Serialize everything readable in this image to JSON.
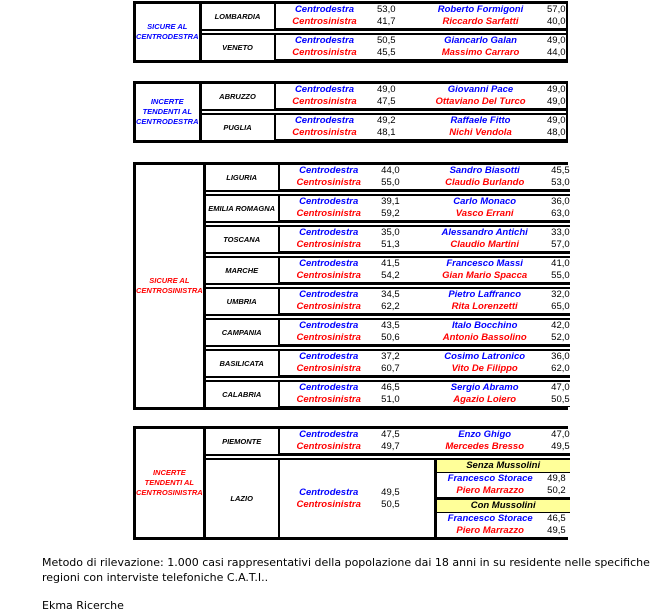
{
  "colors": {
    "centrodestra": "#0000ff",
    "centrosinistra": "#ff0000",
    "scenario_header": "#ffff99"
  },
  "blocks": [
    {
      "category": "SICURE AL CENTRODESTRA",
      "category_color": "#0000ff",
      "regions": [
        {
          "name": "LOMBARDIA",
          "rows": [
            {
              "coalition": "Centrodestra",
              "pct": "53,0",
              "candidate": "Roberto Formigoni",
              "cand_pct": "57,0"
            },
            {
              "coalition": "Centrosinistra",
              "pct": "41,7",
              "candidate": "Riccardo Sarfatti",
              "cand_pct": "40,0"
            }
          ]
        },
        {
          "name": "VENETO",
          "rows": [
            {
              "coalition": "Centrodestra",
              "pct": "50,5",
              "candidate": "Giancarlo Galan",
              "cand_pct": "49,0"
            },
            {
              "coalition": "Centrosinistra",
              "pct": "45,5",
              "candidate": "Massimo Carraro",
              "cand_pct": "44,0"
            }
          ]
        }
      ]
    },
    {
      "category": "INCERTE TENDENTI AL CENTRODESTRA",
      "category_color": "#0000ff",
      "regions": [
        {
          "name": "ABRUZZO",
          "rows": [
            {
              "coalition": "Centrodestra",
              "pct": "49,0",
              "candidate": "Giovanni Pace",
              "cand_pct": "49,0"
            },
            {
              "coalition": "Centrosinistra",
              "pct": "47,5",
              "candidate": "Ottaviano Del Turco",
              "cand_pct": "49,0"
            }
          ]
        },
        {
          "name": "PUGLIA",
          "rows": [
            {
              "coalition": "Centrodestra",
              "pct": "49,2",
              "candidate": "Raffaele Fitto",
              "cand_pct": "49,0"
            },
            {
              "coalition": "Centrosinistra",
              "pct": "48,1",
              "candidate": "Nichi Vendola",
              "cand_pct": "48,0"
            }
          ]
        }
      ]
    },
    {
      "category": "SICURE AL CENTROSINISTRA",
      "category_color": "#ff0000",
      "regions": [
        {
          "name": "LIGURIA",
          "rows": [
            {
              "coalition": "Centrodestra",
              "pct": "44,0",
              "candidate": "Sandro Biasotti",
              "cand_pct": "45,5"
            },
            {
              "coalition": "Centrosinistra",
              "pct": "55,0",
              "candidate": "Claudio Burlando",
              "cand_pct": "53,0"
            }
          ]
        },
        {
          "name": "EMILIA ROMAGNA",
          "rows": [
            {
              "coalition": "Centrodestra",
              "pct": "39,1",
              "candidate": "Carlo Monaco",
              "cand_pct": "36,0"
            },
            {
              "coalition": "Centrosinistra",
              "pct": "59,2",
              "candidate": "Vasco Errani",
              "cand_pct": "63,0"
            }
          ]
        },
        {
          "name": "TOSCANA",
          "rows": [
            {
              "coalition": "Centrodestra",
              "pct": "35,0",
              "candidate": "Alessandro Antichi",
              "cand_pct": "33,0"
            },
            {
              "coalition": "Centrosinistra",
              "pct": "51,3",
              "candidate": "Claudio Martini",
              "cand_pct": "57,0"
            }
          ]
        },
        {
          "name": "MARCHE",
          "rows": [
            {
              "coalition": "Centrodestra",
              "pct": "41,5",
              "candidate": "Francesco Massi",
              "cand_pct": "41,0"
            },
            {
              "coalition": "Centrosinistra",
              "pct": "54,2",
              "candidate": "Gian Mario Spacca",
              "cand_pct": "55,0"
            }
          ]
        },
        {
          "name": "UMBRIA",
          "rows": [
            {
              "coalition": "Centrodestra",
              "pct": "34,5",
              "candidate": "Pietro Laffranco",
              "cand_pct": "32,0"
            },
            {
              "coalition": "Centrosinistra",
              "pct": "62,2",
              "candidate": "Rita Lorenzetti",
              "cand_pct": "65,0"
            }
          ]
        },
        {
          "name": "CAMPANIA",
          "rows": [
            {
              "coalition": "Centrodestra",
              "pct": "43,5",
              "candidate": "Italo Bocchino",
              "cand_pct": "42,0"
            },
            {
              "coalition": "Centrosinistra",
              "pct": "50,6",
              "candidate": "Antonio Bassolino",
              "cand_pct": "52,0"
            }
          ]
        },
        {
          "name": "BASILICATA",
          "rows": [
            {
              "coalition": "Centrodestra",
              "pct": "37,2",
              "candidate": "Cosimo Latronico",
              "cand_pct": "36,0"
            },
            {
              "coalition": "Centrosinistra",
              "pct": "60,7",
              "candidate": "Vito De Filippo",
              "cand_pct": "62,0"
            }
          ]
        },
        {
          "name": "CALABRIA",
          "rows": [
            {
              "coalition": "Centrodestra",
              "pct": "46,5",
              "candidate": "Sergio Abramo",
              "cand_pct": "47,0"
            },
            {
              "coalition": "Centrosinistra",
              "pct": "51,0",
              "candidate": "Agazio Loiero",
              "cand_pct": "50,5"
            }
          ]
        }
      ]
    },
    {
      "category": "INCERTE TENDENTI AL CENTROSINISTRA",
      "category_color": "#ff0000",
      "regions": [
        {
          "name": "PIEMONTE",
          "rows": [
            {
              "coalition": "Centrodestra",
              "pct": "47,5",
              "candidate": "Enzo Ghigo",
              "cand_pct": "47,0"
            },
            {
              "coalition": "Centrosinistra",
              "pct": "49,7",
              "candidate": "Mercedes Bresso",
              "cand_pct": "49,5"
            }
          ]
        },
        {
          "name": "LAZIO",
          "rows": [
            {
              "coalition": "Centrodestra",
              "pct": "49,5"
            },
            {
              "coalition": "Centrosinistra",
              "pct": "50,5"
            }
          ],
          "scenarios": [
            {
              "title": "Senza Mussolini",
              "rows": [
                {
                  "candidate": "Francesco Storace",
                  "cand_pct": "49,8"
                },
                {
                  "candidate": "Piero Marrazzo",
                  "cand_pct": "50,2"
                }
              ]
            },
            {
              "title": "Con Mussolini",
              "rows": [
                {
                  "candidate": "Francesco Storace",
                  "cand_pct": "46,5"
                },
                {
                  "candidate": "Piero Marrazzo",
                  "cand_pct": "49,5"
                }
              ]
            }
          ]
        }
      ]
    }
  ],
  "footer": {
    "method_line1": "Metodo di rilevazione: 1.000 casi rappresentativi della popolazione dai 18 anni in su residente nelle specifiche",
    "method_line2": "regioni con interviste telefoniche C.A.T.I..",
    "source": "Ekma Ricerche"
  }
}
